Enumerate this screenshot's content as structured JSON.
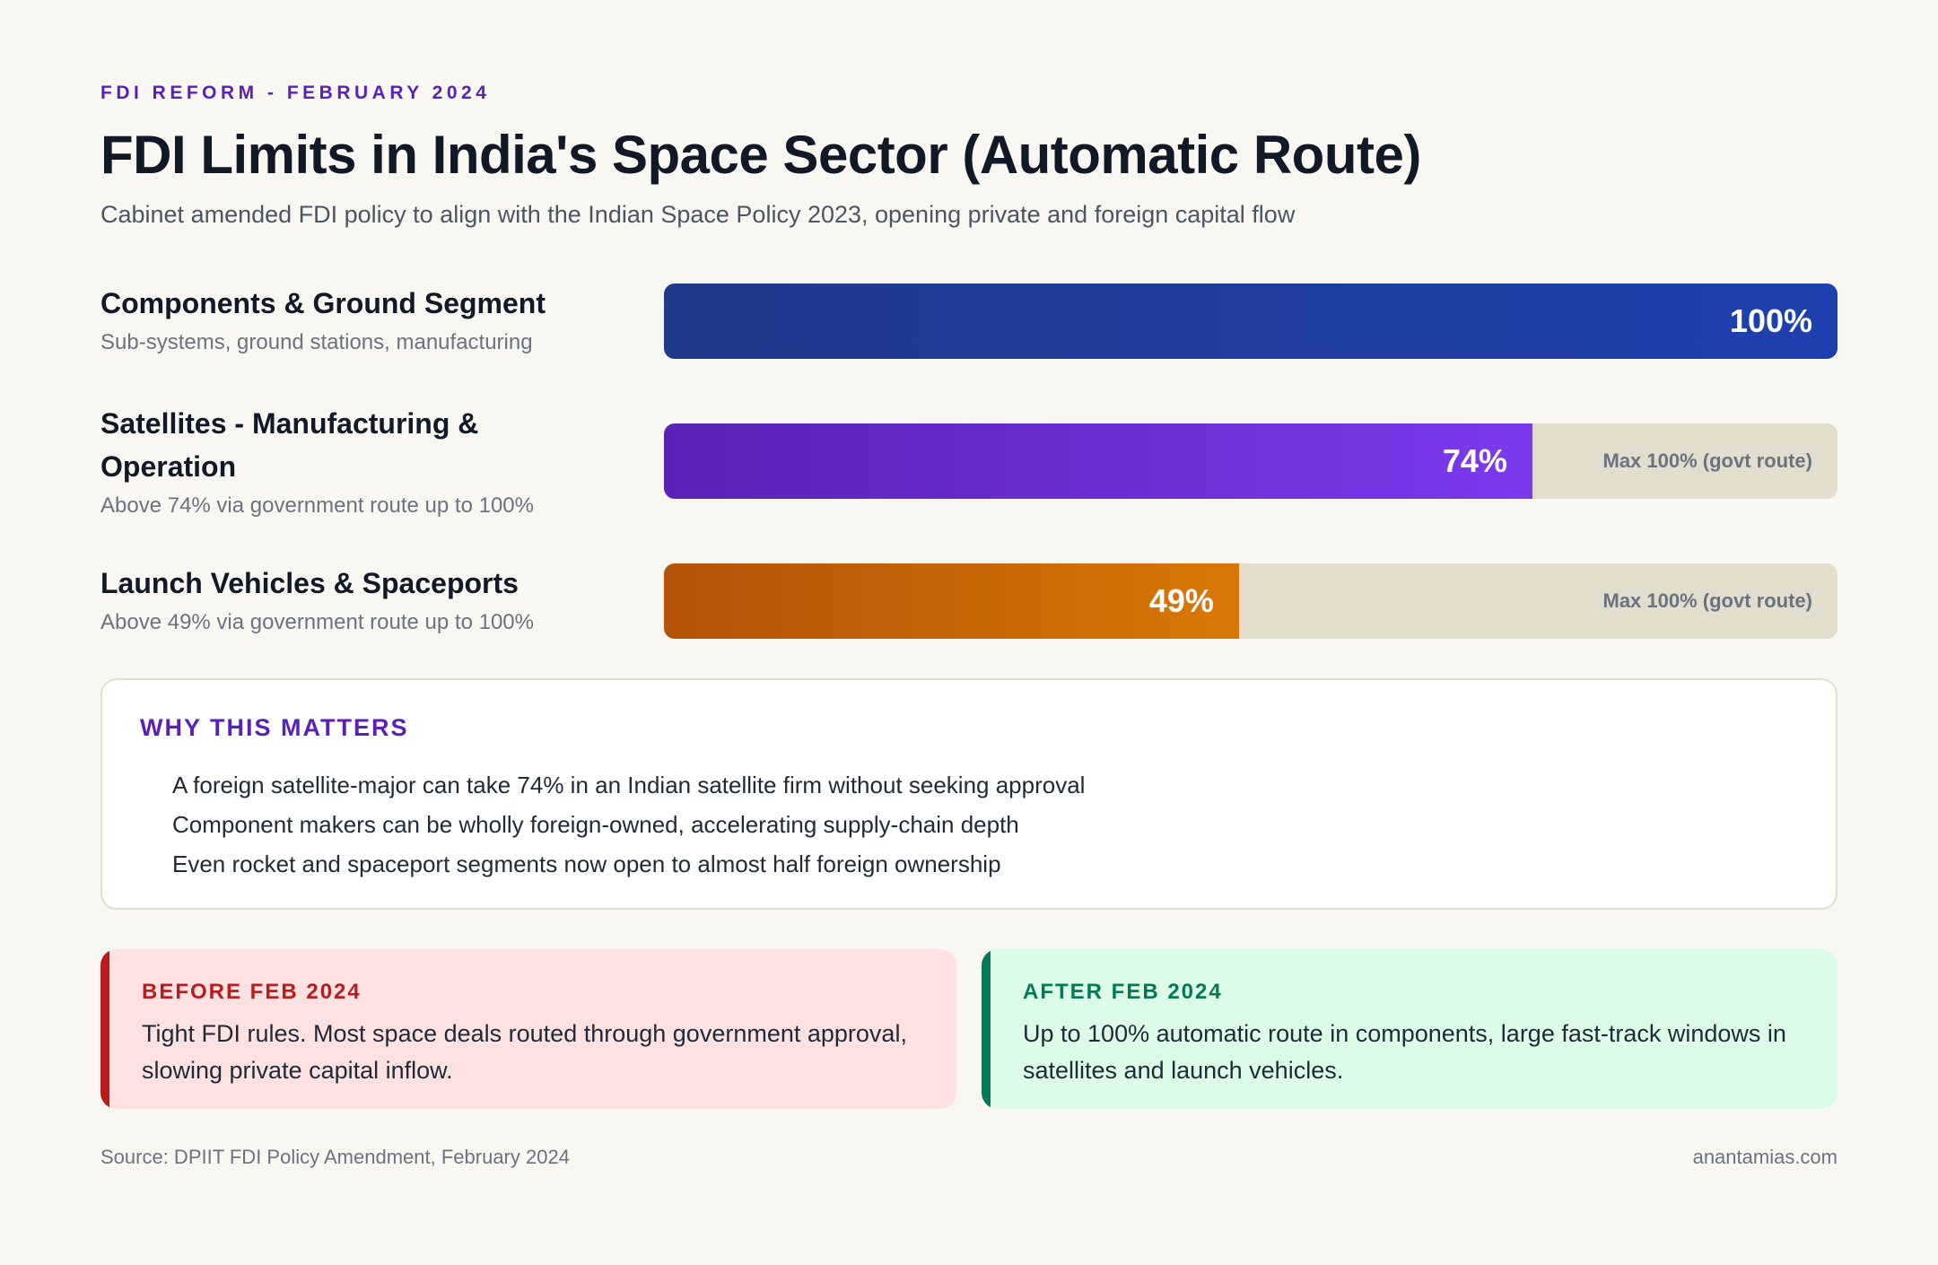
{
  "header": {
    "eyebrow": "FDI REFORM - FEBRUARY 2024",
    "title": "FDI Limits in India's Space Sector (Automatic Route)",
    "subtitle": "Cabinet amended FDI policy to align with the Indian Space Policy 2023, opening private and foreign capital flow"
  },
  "chart_data": {
    "type": "bar",
    "orientation": "horizontal",
    "categories": [
      "Components & Ground Segment",
      "Satellites - Manufacturing & Operation",
      "Launch Vehicles & Spaceports"
    ],
    "descriptions": [
      "Sub-systems, ground stations, manufacturing",
      "Above 74% via government route up to 100%",
      "Above 49% via government route up to 100%"
    ],
    "values": [
      100,
      74,
      49
    ],
    "value_labels": [
      "100%",
      "74%",
      "49%"
    ],
    "track_notes": [
      "",
      "Max 100% (govt route)",
      "Max 100% (govt route)"
    ],
    "xlim": [
      0,
      100
    ],
    "colors": [
      "#1e40af",
      "#7c3aed",
      "#d97706"
    ],
    "grid": false
  },
  "why": {
    "title": "WHY THIS MATTERS",
    "items": [
      "A foreign satellite-major can take 74% in an Indian satellite firm without seeking approval",
      "Component makers can be wholly foreign-owned, accelerating supply-chain depth",
      "Even rocket and spaceport segments now open to almost half foreign ownership"
    ]
  },
  "compare": {
    "before": {
      "title": "BEFORE FEB 2024",
      "text": "Tight FDI rules. Most space deals routed through government approval, slowing private capital inflow.",
      "color": "#b91c1c"
    },
    "after": {
      "title": "AFTER FEB 2024",
      "text": "Up to 100% automatic route in components, large fast-track windows in satellites and launch vehicles.",
      "color": "#047857"
    }
  },
  "footer": {
    "source": "Source: DPIIT FDI Policy Amendment, February 2024",
    "site": "anantamias.com"
  }
}
